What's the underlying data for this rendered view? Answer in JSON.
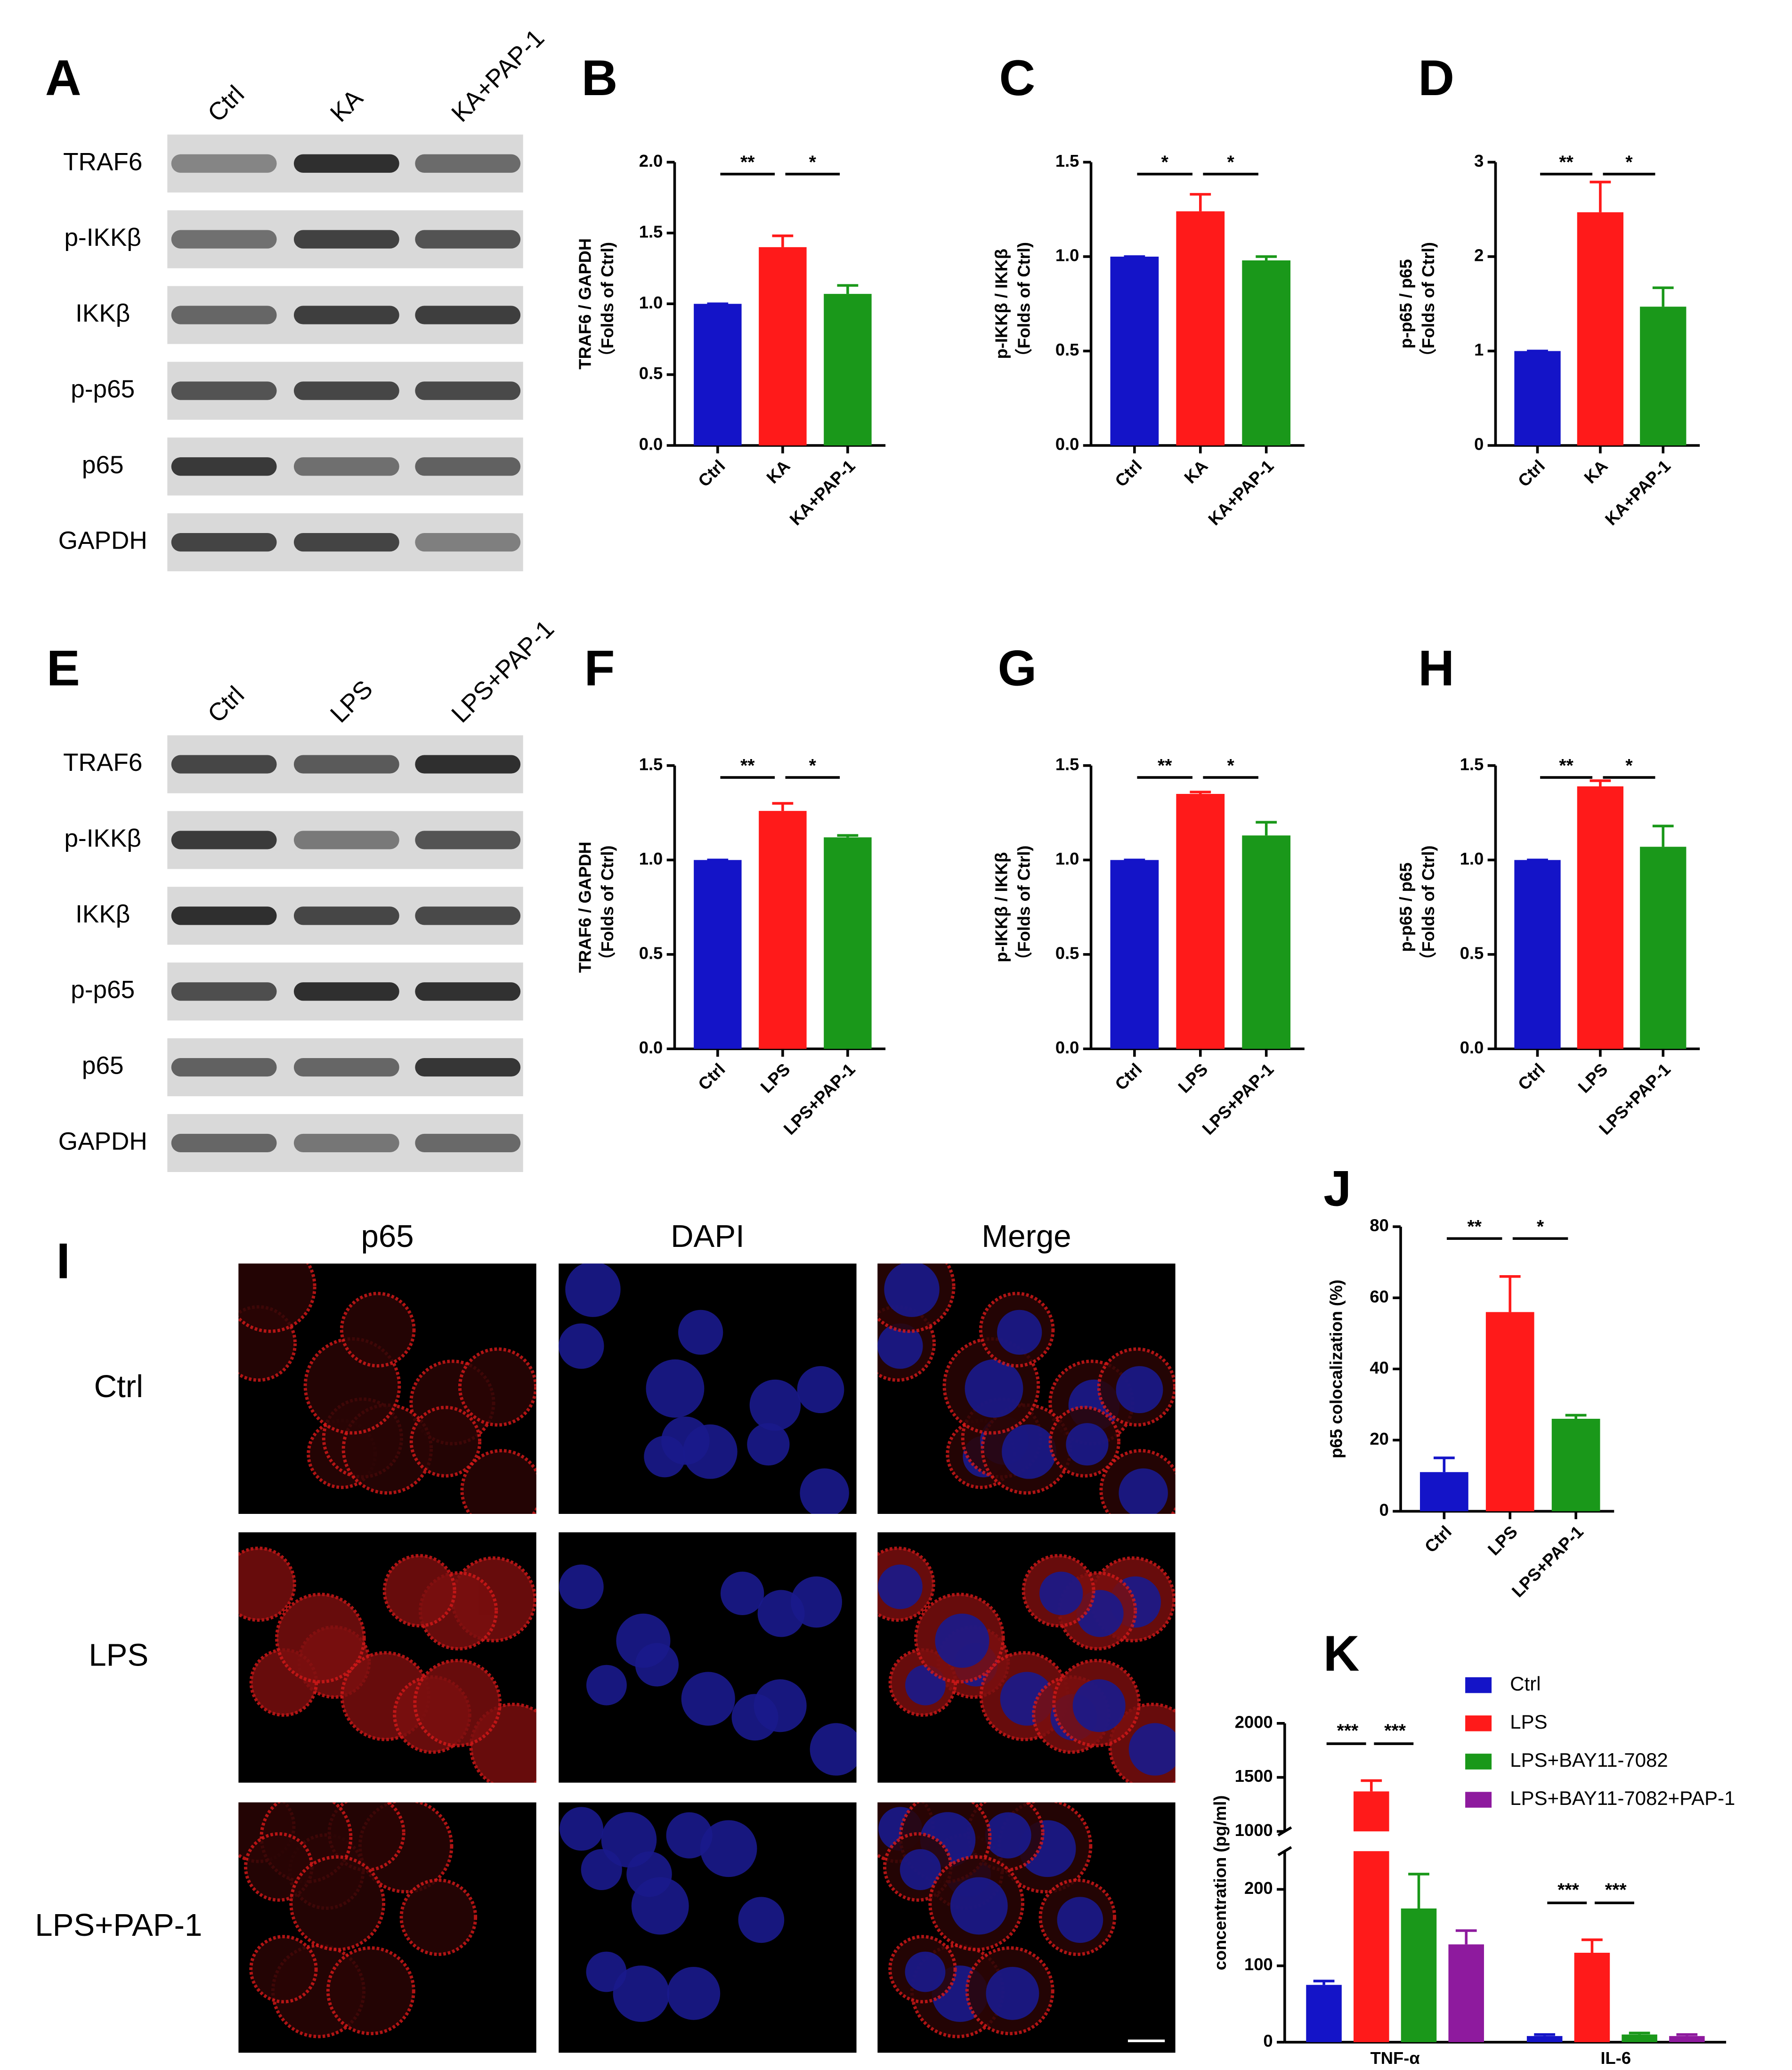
{
  "blots": [
    {
      "panel": "A",
      "lanes": [
        "Ctrl",
        "KA",
        "KA+PAP-1"
      ],
      "rows": [
        "TRAF6",
        "p-IKKβ",
        "IKKβ",
        "p-p65",
        "p65",
        "GAPDH"
      ]
    },
    {
      "panel": "E",
      "lanes": [
        "Ctrl",
        "LPS",
        "LPS+PAP-1"
      ],
      "rows": [
        "TRAF6",
        "p-IKKβ",
        "IKKβ",
        "p-p65",
        "p65",
        "GAPDH"
      ]
    }
  ],
  "microscopy": {
    "panel": "I",
    "columns": [
      "p65",
      "DAPI",
      "Merge"
    ],
    "rows": [
      "Ctrl",
      "LPS",
      "LPS+PAP-1"
    ]
  },
  "chart_data": [
    {
      "type": "bar",
      "panel": "B",
      "ylabel": [
        "TRAF6 / GAPDH",
        "（Folds of Ctrl)"
      ],
      "categories": [
        "Ctrl",
        "KA",
        "KA+PAP-1"
      ],
      "values": [
        1.0,
        1.4,
        1.07
      ],
      "errors": [
        0,
        0.08,
        0.06
      ],
      "colors": [
        "#1414c8",
        "#ff1a1a",
        "#1a981a"
      ],
      "ylim": [
        0,
        2
      ],
      "yticks": [
        {
          "value": 0,
          "label": "0.0"
        },
        {
          "value": 0.5,
          "label": "0.5"
        },
        {
          "value": 1,
          "label": "1.0"
        },
        {
          "value": 1.5,
          "label": "1.5"
        },
        {
          "value": 2,
          "label": "2.0"
        }
      ],
      "significance": [
        "**",
        "*"
      ]
    },
    {
      "type": "bar",
      "panel": "C",
      "ylabel": [
        "p-IKKβ / IKKβ",
        "（Folds of Ctrl)"
      ],
      "categories": [
        "Ctrl",
        "KA",
        "KA+PAP-1"
      ],
      "values": [
        1.0,
        1.24,
        0.98
      ],
      "errors": [
        0,
        0.09,
        0.02
      ],
      "colors": [
        "#1414c8",
        "#ff1a1a",
        "#1a981a"
      ],
      "ylim": [
        0,
        1.5
      ],
      "yticks": [
        {
          "value": 0,
          "label": "0.0"
        },
        {
          "value": 0.5,
          "label": "0.5"
        },
        {
          "value": 1,
          "label": "1.0"
        },
        1.5
      ],
      "significance": [
        "*",
        "*"
      ]
    },
    {
      "type": "bar",
      "panel": "D",
      "ylabel": [
        "p-p65 / p65",
        "（Folds of Ctrl)"
      ],
      "categories": [
        "Ctrl",
        "KA",
        "KA+PAP-1"
      ],
      "values": [
        1.0,
        2.47,
        1.47
      ],
      "errors": [
        0,
        0.32,
        0.2
      ],
      "colors": [
        "#1414c8",
        "#ff1a1a",
        "#1a981a"
      ],
      "ylim": [
        0,
        3
      ],
      "yticks": [
        0,
        1,
        2,
        3
      ],
      "significance": [
        "**",
        "*"
      ]
    },
    {
      "type": "bar",
      "panel": "F",
      "ylabel": [
        "TRAF6 / GAPDH",
        "（Folds of Ctrl)"
      ],
      "categories": [
        "Ctrl",
        "LPS",
        "LPS+PAP-1"
      ],
      "values": [
        1.0,
        1.26,
        1.12
      ],
      "errors": [
        0,
        0.04,
        0.01
      ],
      "colors": [
        "#1414c8",
        "#ff1a1a",
        "#1a981a"
      ],
      "ylim": [
        0,
        1.5
      ],
      "yticks": [
        {
          "value": 0,
          "label": "0.0"
        },
        {
          "value": 0.5,
          "label": "0.5"
        },
        {
          "value": 1,
          "label": "1.0"
        },
        1.5
      ],
      "significance": [
        "**",
        "*"
      ]
    },
    {
      "type": "bar",
      "panel": "G",
      "ylabel": [
        "p-IKKβ / IKKβ",
        "（Folds of Ctrl)"
      ],
      "categories": [
        "Ctrl",
        "LPS",
        "LPS+PAP-1"
      ],
      "values": [
        1.0,
        1.35,
        1.13
      ],
      "errors": [
        0,
        0.01,
        0.07
      ],
      "colors": [
        "#1414c8",
        "#ff1a1a",
        "#1a981a"
      ],
      "ylim": [
        0,
        1.5
      ],
      "yticks": [
        {
          "value": 0,
          "label": "0.0"
        },
        {
          "value": 0.5,
          "label": "0.5"
        },
        {
          "value": 1,
          "label": "1.0"
        },
        1.5
      ],
      "significance": [
        "**",
        "*"
      ]
    },
    {
      "type": "bar",
      "panel": "H",
      "ylabel": [
        "p-p65 / p65",
        "（Folds of Ctrl)"
      ],
      "categories": [
        "Ctrl",
        "LPS",
        "LPS+PAP-1"
      ],
      "values": [
        1.0,
        1.39,
        1.07
      ],
      "errors": [
        0,
        0.03,
        0.11
      ],
      "colors": [
        "#1414c8",
        "#ff1a1a",
        "#1a981a"
      ],
      "ylim": [
        0,
        1.5
      ],
      "yticks": [
        {
          "value": 0,
          "label": "0.0"
        },
        {
          "value": 0.5,
          "label": "0.5"
        },
        {
          "value": 1,
          "label": "1.0"
        },
        1.5
      ],
      "significance": [
        "**",
        "*"
      ]
    },
    {
      "type": "bar",
      "panel": "J",
      "ylabel": [
        "p65 colocalization (%)"
      ],
      "categories": [
        "Ctrl",
        "LPS",
        "LPS+PAP-1"
      ],
      "values": [
        11,
        56,
        26
      ],
      "errors": [
        4,
        10,
        1
      ],
      "colors": [
        "#1414c8",
        "#ff1a1a",
        "#1a981a"
      ],
      "ylim": [
        0,
        80
      ],
      "yticks": [
        0,
        20,
        40,
        60,
        80
      ],
      "significance": [
        "**",
        "*"
      ]
    },
    {
      "type": "grouped_bar",
      "panel": "K",
      "ylabel": [
        "concentration (pg/ml)"
      ],
      "categories": [
        "TNF-α",
        "IL-6"
      ],
      "series": [
        {
          "name": "Ctrl",
          "color": "#1414c8",
          "values": [
            75,
            8
          ],
          "errors": [
            5,
            2
          ]
        },
        {
          "name": "LPS",
          "color": "#ff1a1a",
          "values": [
            1370,
            117
          ],
          "errors": [
            100,
            17
          ]
        },
        {
          "name": "LPS+BAY11-7082",
          "color": "#1a981a",
          "values": [
            175,
            10
          ],
          "errors": [
            45,
            2
          ]
        },
        {
          "name": "LPS+BAY11-7082+PAP-1",
          "color": "#8e1a9e",
          "values": [
            128,
            8
          ],
          "errors": [
            18,
            2
          ]
        }
      ],
      "ylim": [
        0,
        2000
      ],
      "ybreak": [
        250,
        1000
      ],
      "yticks": [
        0,
        100,
        200,
        1000,
        1500,
        2000
      ],
      "significance": [
        [
          "***",
          "***"
        ],
        [
          "***",
          "***"
        ]
      ]
    }
  ]
}
